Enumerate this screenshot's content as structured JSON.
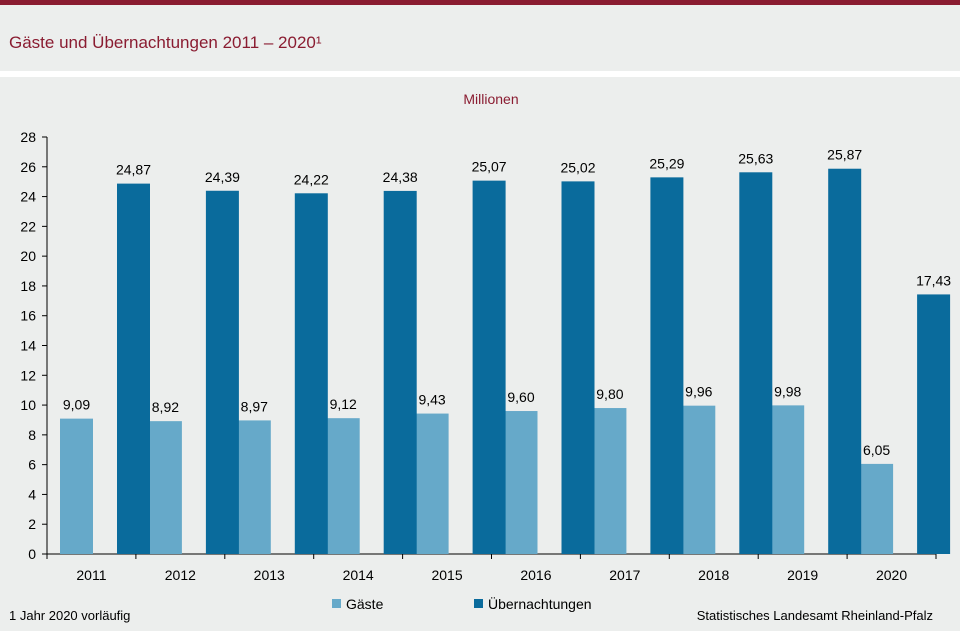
{
  "title": "Gäste und Übernachtungen 2011 – 2020¹",
  "footnote": "1 Jahr 2020 vorläufig",
  "source": "Statistisches Landesamt  Rheinland-Pfalz",
  "colors": {
    "accent": "#8a1c31",
    "gaeste": "#66a9c9",
    "uebernachtungen": "#0a6b9c"
  },
  "chart_data": {
    "type": "bar",
    "unit_label": "Millionen",
    "categories": [
      "2011",
      "2012",
      "2013",
      "2014",
      "2015",
      "2016",
      "2017",
      "2018",
      "2019",
      "2020"
    ],
    "series": [
      {
        "name": "Gäste",
        "values": [
          9.09,
          8.92,
          8.97,
          9.12,
          9.43,
          9.6,
          9.8,
          9.96,
          9.98,
          6.05
        ],
        "labels": [
          "9,09",
          "8,92",
          "8,97",
          "9,12",
          "9,43",
          "9,60",
          "9,80",
          "9,96",
          "9,98",
          "6,05"
        ]
      },
      {
        "name": "Übernachtungen",
        "values": [
          24.87,
          24.39,
          24.22,
          24.38,
          25.07,
          25.02,
          25.29,
          25.63,
          25.87,
          17.43
        ],
        "labels": [
          "24,87",
          "24,39",
          "24,22",
          "24,38",
          "25,07",
          "25,02",
          "25,29",
          "25,63",
          "25,87",
          "17,43"
        ]
      }
    ],
    "ylim": [
      0,
      28
    ],
    "yticks": [
      0,
      2,
      4,
      6,
      8,
      10,
      12,
      14,
      16,
      18,
      20,
      22,
      24,
      26,
      28
    ],
    "legend_position": "bottom"
  }
}
